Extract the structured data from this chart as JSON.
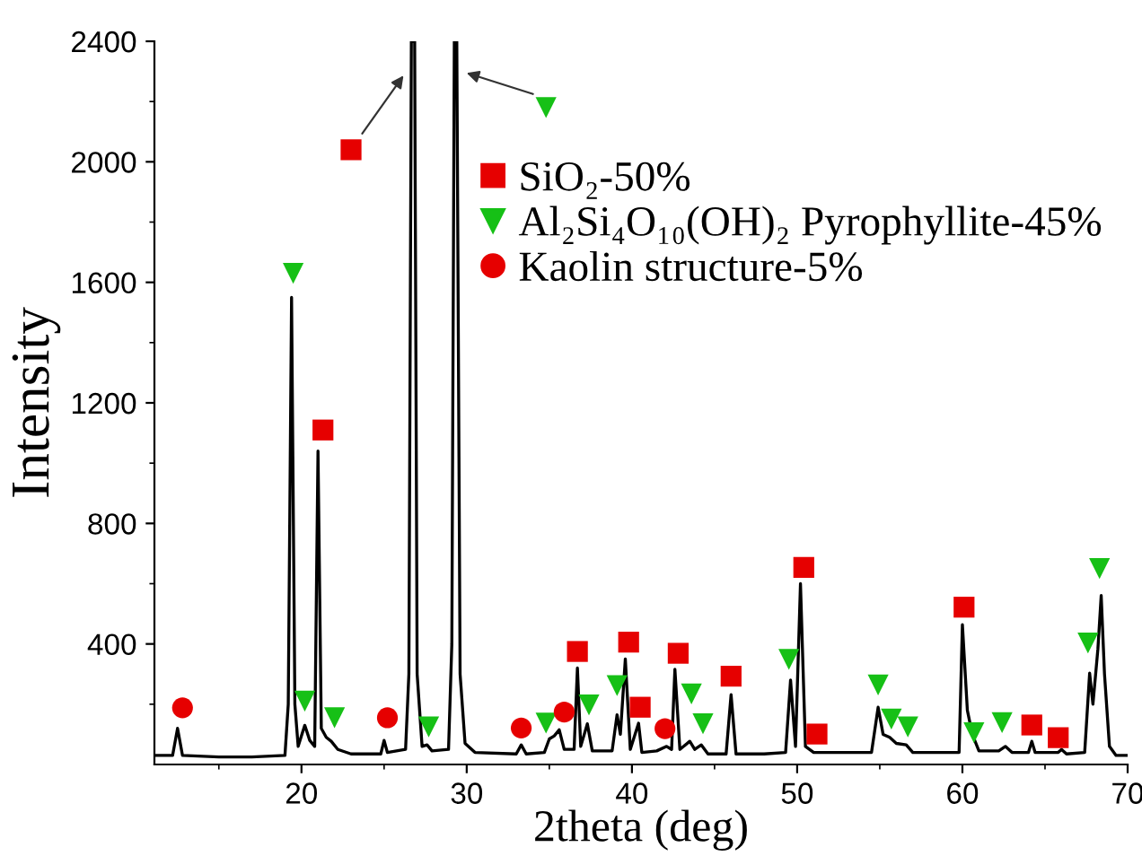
{
  "chart_data": {
    "type": "line",
    "xlabel": "2theta (deg)",
    "ylabel": "Intensity",
    "xlim": [
      11.1,
      70
    ],
    "ylim": [
      0,
      2400
    ],
    "xticks": [
      20,
      30,
      40,
      50,
      60,
      70
    ],
    "yticks": [
      400,
      800,
      1200,
      1600,
      2000,
      2400
    ],
    "grid": false,
    "legend": "top right",
    "marker": "none",
    "line_style": "solid",
    "series": [
      {
        "color": "#000000",
        "x": [
          11.1,
          12.2,
          12.5,
          12.8,
          15,
          17,
          19.0,
          19.2,
          19.4,
          19.6,
          19.8,
          20.2,
          20.5,
          20.8,
          21.0,
          21.2,
          21.5,
          21.8,
          22.2,
          23,
          24.8,
          25.0,
          25.2,
          26.3,
          26.5,
          26.65,
          26.85,
          27.0,
          27.3,
          27.6,
          27.9,
          28.9,
          29.1,
          29.25,
          29.4,
          29.6,
          29.9,
          30.5,
          33.0,
          33.3,
          33.6,
          34.7,
          35.0,
          35.3,
          35.6,
          35.9,
          36.5,
          36.7,
          36.9,
          37.3,
          37.6,
          38.8,
          39.1,
          39.3,
          39.6,
          39.9,
          40.4,
          40.6,
          41.5,
          42.1,
          42.4,
          42.6,
          42.9,
          43.5,
          43.8,
          44.2,
          44.6,
          45.7,
          46.0,
          46.3,
          48,
          49.3,
          49.6,
          49.9,
          50.2,
          50.5,
          51,
          54.5,
          54.9,
          55.2,
          55.6,
          56,
          56.6,
          57,
          59.8,
          60.0,
          60.3,
          60.6,
          61,
          62.2,
          62.6,
          63,
          64.0,
          64.2,
          64.4,
          65.8,
          66.0,
          66.3,
          67.4,
          67.7,
          67.9,
          68.2,
          68.4,
          68.6,
          68.9,
          69.3,
          70
        ],
        "values": [
          30,
          30,
          120,
          30,
          25,
          25,
          30,
          200,
          1550,
          200,
          60,
          130,
          80,
          60,
          1040,
          120,
          90,
          77,
          50,
          35,
          35,
          80,
          40,
          50,
          300,
          2400,
          2400,
          300,
          60,
          65,
          45,
          50,
          400,
          2400,
          2400,
          300,
          70,
          40,
          35,
          65,
          35,
          40,
          85,
          95,
          115,
          50,
          50,
          320,
          60,
          135,
          45,
          45,
          165,
          100,
          350,
          50,
          137,
          40,
          45,
          60,
          50,
          316,
          50,
          77,
          50,
          65,
          35,
          35,
          232,
          35,
          35,
          40,
          280,
          60,
          600,
          60,
          40,
          40,
          190,
          100,
          90,
          70,
          65,
          40,
          40,
          464,
          180,
          100,
          45,
          45,
          60,
          40,
          40,
          77,
          40,
          40,
          50,
          35,
          40,
          303,
          200,
          383,
          561,
          300,
          60,
          30,
          30
        ]
      },
      {
        "type": "scatter",
        "name": "SiO₂-50%",
        "color": "#e60000",
        "marker": "square",
        "x": [
          23.0,
          21.3,
          36.7,
          39.8,
          40.5,
          42.8,
          46.0,
          50.4,
          51.2,
          60.1,
          64.2,
          65.8
        ],
        "values": [
          2040,
          1110,
          375,
          406,
          190,
          369,
          293,
          654,
          101,
          522,
          131,
          89
        ]
      },
      {
        "type": "scatter",
        "name": "Al₂Si₄O₁₀(OH)₂ Pyrophyllite-45%",
        "color": "#16c016",
        "marker": "triangle",
        "x": [
          34.8,
          19.5,
          20.2,
          22.0,
          27.7,
          34.8,
          37.4,
          39.1,
          43.6,
          44.3,
          49.5,
          54.9,
          55.7,
          56.7,
          60.7,
          62.4,
          67.6,
          68.3
        ],
        "values": [
          2180,
          1630,
          210,
          155,
          125,
          137,
          198,
          262,
          234,
          135,
          349,
          264,
          151,
          125,
          105,
          139,
          403,
          650
        ]
      },
      {
        "type": "scatter",
        "name": "Kaolin structure-5%",
        "color": "#e60000",
        "marker": "circle",
        "x": [
          12.8,
          25.2,
          33.3,
          35.9,
          42.0
        ],
        "values": [
          188,
          155,
          121,
          174,
          119
        ]
      }
    ]
  }
}
